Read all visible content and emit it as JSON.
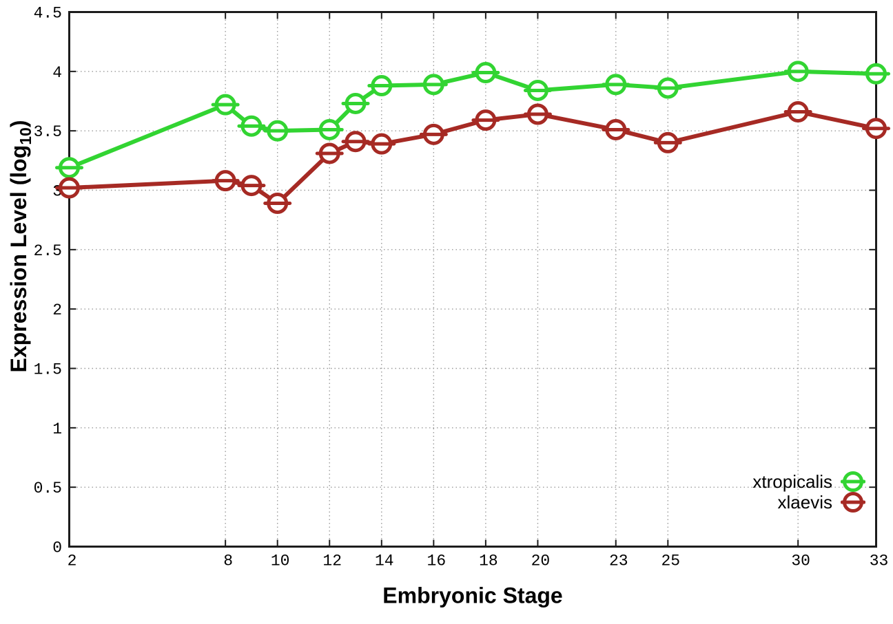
{
  "chart_data": {
    "type": "line",
    "title": "",
    "xlabel": "Embryonic Stage",
    "ylabel": "Expression Level (log10)",
    "ylabel_main": "Expression Level (log",
    "ylabel_sub": "10",
    "ylabel_close": ")",
    "x": [
      2,
      8,
      9,
      10,
      12,
      13,
      14,
      16,
      18,
      20,
      23,
      25,
      30,
      33
    ],
    "series": [
      {
        "name": "xtropicalis",
        "color": "#32d432",
        "values": [
          3.19,
          3.72,
          3.54,
          3.5,
          3.51,
          3.73,
          3.88,
          3.89,
          3.99,
          3.84,
          3.89,
          3.86,
          4.0,
          3.98
        ]
      },
      {
        "name": "xlaevis",
        "color": "#a62a24",
        "values": [
          3.02,
          3.08,
          3.04,
          2.89,
          3.31,
          3.41,
          3.39,
          3.47,
          3.59,
          3.64,
          3.51,
          3.4,
          3.66,
          3.52
        ]
      }
    ],
    "xlim": [
      2,
      33
    ],
    "ylim": [
      0,
      4.5
    ],
    "x_tick_labels": [
      "2",
      "8",
      "10",
      "12",
      "14",
      "16",
      "18",
      "20",
      "23",
      "25",
      "30",
      "33"
    ],
    "x_tick_values": [
      2,
      8,
      10,
      12,
      14,
      16,
      18,
      20,
      23,
      25,
      30,
      33
    ],
    "y_tick_labels": [
      "0",
      "0.5",
      "1",
      "1.5",
      "2",
      "2.5",
      "3",
      "3.5",
      "4",
      "4.5"
    ],
    "y_tick_values": [
      0,
      0.5,
      1,
      1.5,
      2,
      2.5,
      3,
      3.5,
      4,
      4.5
    ],
    "grid": true,
    "legend_position": "bottom-right",
    "marker": "open-circle-with-horizontal-bar",
    "grid_color": "#9a9a9a",
    "axis_color": "#1c1c1c",
    "text_color": "#000000"
  }
}
